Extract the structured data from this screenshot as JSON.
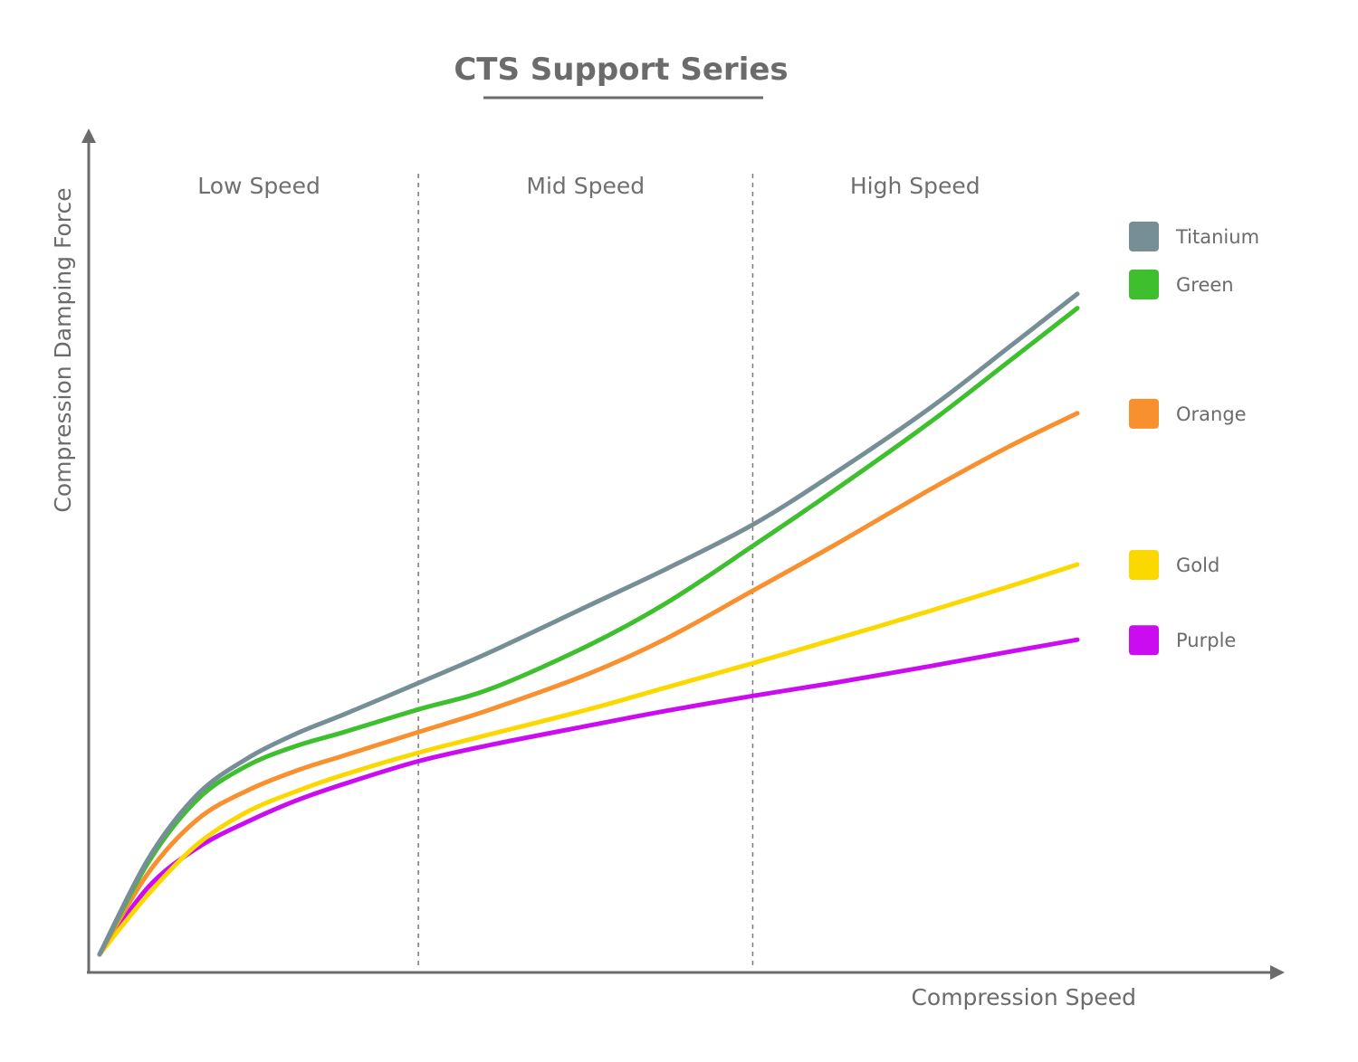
{
  "chart_data": {
    "type": "line",
    "title": "CTS Support Series",
    "xlabel": "Compression Speed",
    "ylabel": "Compression Damping Force",
    "xlim": [
      0,
      100
    ],
    "ylim": [
      0,
      100
    ],
    "ticks_shown": false,
    "grid": false,
    "legend_position": "right",
    "regions": [
      {
        "label": "Low Speed",
        "x_start": 0,
        "x_end": 32.6
      },
      {
        "label": "Mid Speed",
        "x_start": 32.6,
        "x_end": 66.8
      },
      {
        "label": "High Speed",
        "x_start": 66.8,
        "x_end": 100
      }
    ],
    "x": [
      0,
      5,
      10,
      15,
      20,
      25,
      32.6,
      40,
      50,
      58,
      66.8,
      75,
      85,
      93,
      100
    ],
    "series": [
      {
        "name": "Titanium",
        "color": "#768f97",
        "values": [
          0,
          13.5,
          22.5,
          27.5,
          31,
          33.8,
          38.2,
          42.6,
          49.1,
          54.3,
          60.5,
          67.6,
          77,
          85.5,
          93
        ]
      },
      {
        "name": "Green",
        "color": "#3dbf2e",
        "values": [
          0,
          13,
          21.8,
          26.5,
          29.3,
          31.3,
          34.5,
          37.4,
          43.5,
          49.5,
          57.5,
          65.2,
          75,
          83.5,
          91
        ]
      },
      {
        "name": "Orange",
        "color": "#f9902f",
        "values": [
          0,
          11.5,
          19,
          23,
          25.8,
          28,
          31.3,
          34.5,
          39.5,
          44.5,
          51.2,
          57.5,
          65.5,
          71.5,
          76.2
        ]
      },
      {
        "name": "Gold",
        "color": "#fbd800",
        "values": [
          0,
          8.5,
          15.5,
          20,
          22.9,
          25.3,
          28.4,
          31,
          34.5,
          37.6,
          41,
          44.3,
          48.4,
          51.8,
          54.9
        ]
      },
      {
        "name": "Purple",
        "color": "#cc0cf0",
        "values": [
          0,
          9.5,
          15,
          18.6,
          21.6,
          24,
          27.2,
          29.5,
          32.2,
          34.3,
          36.4,
          38.2,
          40.6,
          42.6,
          44.3
        ]
      }
    ]
  }
}
